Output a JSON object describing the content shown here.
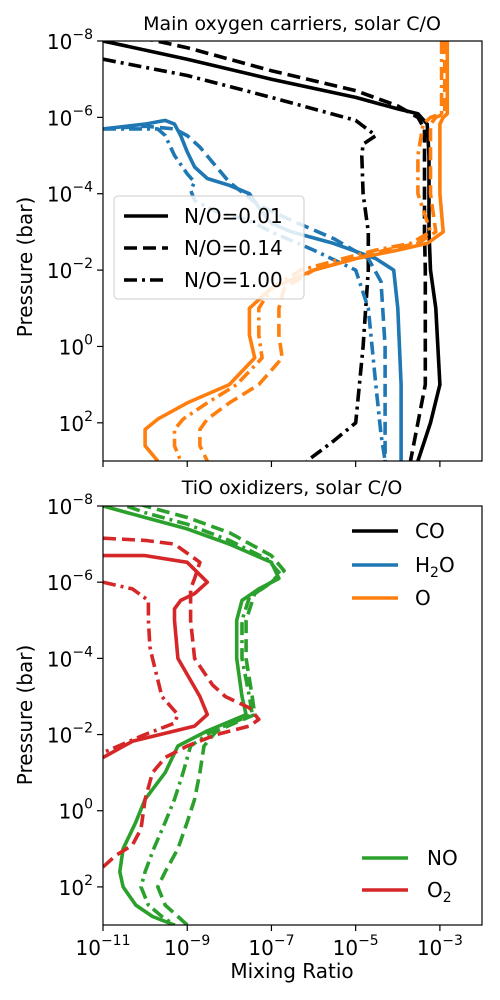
{
  "chart_data": [
    {
      "type": "line",
      "title": "Main oxygen carriers, solar C/O",
      "xlabel": "",
      "ylabel": "Pressure (bar)",
      "xscale": "log",
      "yscale": "log",
      "y_inverted": true,
      "xlim": [
        1e-11,
        0.01
      ],
      "ylim": [
        1e-08,
        1000
      ],
      "yticks": [
        {
          "base": "10",
          "exp": "−8",
          "value": 1e-08
        },
        {
          "base": "10",
          "exp": "−6",
          "value": 1e-06
        },
        {
          "base": "10",
          "exp": "−4",
          "value": 0.0001
        },
        {
          "base": "10",
          "exp": "−2",
          "value": 0.01
        },
        {
          "base": "10",
          "exp": "0",
          "value": 1
        },
        {
          "base": "10",
          "exp": "2",
          "value": 100
        }
      ],
      "legend": {
        "placement": "center-left",
        "entries": [
          {
            "label": "N/O=0.01",
            "dash": "solid"
          },
          {
            "label": "N/O=0.14",
            "dash": "dashed"
          },
          {
            "label": "N/O=1.00",
            "dash": "dashdot"
          }
        ]
      },
      "series": [
        {
          "species": "CO",
          "color": "#000000",
          "dash": "solid",
          "x": [
            1e-11,
            1e-09,
            1e-07,
            1e-05,
            0.0001,
            0.0003,
            0.0005,
            0.00055,
            0.00055,
            0.00055,
            0.0006,
            0.0008,
            0.001,
            0.0006,
            0.0003
          ],
          "y": [
            1e-08,
            3e-08,
            1e-07,
            3e-07,
            6e-07,
            8e-07,
            1.5e-06,
            1e-05,
            0.0001,
            0.001,
            0.01,
            0.1,
            10,
            100,
            1000
          ]
        },
        {
          "species": "CO",
          "color": "#000000",
          "dash": "dashed",
          "x": [
            1e-11,
            1e-09,
            1e-07,
            1e-05,
            0.0001,
            0.0003,
            0.00043,
            0.00043,
            0.00043,
            0.00043,
            0.00045,
            0.00045,
            0.0003,
            0.0002
          ],
          "y": [
            5e-09,
            1.5e-08,
            6e-08,
            2e-07,
            5e-07,
            1e-06,
            2e-06,
            1e-05,
            0.0001,
            0.001,
            0.01,
            10,
            100,
            1000
          ]
        },
        {
          "species": "CO",
          "color": "#000000",
          "dash": "dashdot",
          "x": [
            1e-11,
            1e-09,
            1e-07,
            1e-05,
            3e-05,
            1.5e-05,
            1.4e-05,
            1.5e-05,
            2e-05,
            2e-05,
            1.5e-05,
            1e-05,
            3e-06,
            7e-07
          ],
          "y": [
            3e-08,
            8e-08,
            3e-07,
            1.2e-06,
            3e-06,
            5e-06,
            1e-05,
            0.0001,
            0.001,
            0.01,
            1,
            100,
            300,
            1000
          ]
        },
        {
          "species": "H2O",
          "color": "#1f77b4",
          "dash": "solid",
          "x": [
            1e-11,
            1e-10,
            3e-10,
            5e-10,
            7e-10,
            1e-09,
            1.5e-09,
            3e-09,
            1e-08,
            3e-08,
            6e-08,
            1e-07,
            3e-07,
            3e-06,
            3e-05,
            8e-05,
            0.0001,
            0.00012,
            0.00012
          ],
          "y": [
            2e-06,
            1.5e-06,
            1.2e-06,
            1.5e-06,
            3e-06,
            8e-06,
            2e-05,
            4e-05,
            6e-05,
            0.0001,
            0.0003,
            0.0006,
            0.001,
            0.002,
            0.005,
            0.01,
            0.1,
            10,
            1000
          ]
        },
        {
          "species": "H2O",
          "color": "#1f77b4",
          "dash": "dashed",
          "x": [
            1e-11,
            1e-10,
            5e-10,
            1e-09,
            2e-09,
            4e-09,
            1e-08,
            5e-08,
            3e-07,
            3e-06,
            2e-05,
            4e-05,
            5e-05,
            5e-05
          ],
          "y": [
            2e-06,
            1.7e-06,
            2e-06,
            3e-06,
            6e-06,
            1.5e-05,
            5e-05,
            0.0002,
            0.0005,
            0.0015,
            0.005,
            0.02,
            1,
            1000
          ]
        },
        {
          "species": "H2O",
          "color": "#1f77b4",
          "dash": "dashdot",
          "x": [
            1e-11,
            1e-10,
            2e-10,
            3e-10,
            5e-10,
            1e-09,
            1.5e-09,
            1.2e-09,
            1.3e-09,
            1.5e-09,
            5e-09,
            3e-08,
            1e-07,
            1e-06,
            1e-05,
            2e-05,
            3e-05,
            4e-05,
            5e-05
          ],
          "y": [
            2e-06,
            2e-06,
            2e-06,
            3e-06,
            1e-05,
            3e-05,
            5e-05,
            8e-05,
            0.0001,
            0.00015,
            0.0003,
            0.0005,
            0.001,
            0.003,
            0.01,
            0.1,
            10,
            200,
            1000
          ]
        },
        {
          "species": "O",
          "color": "#ff7f0e",
          "dash": "solid",
          "x": [
            0.0015,
            0.0015,
            0.0015,
            0.0015,
            0.0012,
            0.001,
            0.001,
            0.001,
            0.0012,
            0.0005,
            0.0001,
            1e-05,
            1e-06,
            1e-07,
            3e-08,
            3e-08,
            4e-08,
            1e-08,
            1e-09,
            2e-10,
            1e-10,
            1e-10,
            2e-10
          ],
          "y": [
            1e-08,
            1e-07,
            6e-07,
            8e-07,
            1e-06,
            1.5e-06,
            1e-05,
            0.0001,
            0.001,
            0.002,
            0.003,
            0.005,
            0.01,
            0.03,
            0.1,
            0.5,
            2,
            10,
            30,
            80,
            150,
            400,
            1000
          ]
        },
        {
          "species": "O",
          "color": "#ff7f0e",
          "dash": "dashed",
          "x": [
            0.0013,
            0.0013,
            0.0013,
            0.0013,
            0.0008,
            0.0006,
            0.0006,
            0.0006,
            0.0008,
            0.0003,
            5e-05,
            1e-05,
            1e-06,
            2e-07,
            1.5e-07,
            1.5e-07,
            1.8e-07,
            5e-08,
            1e-08,
            3e-09,
            2e-09,
            2e-09,
            3e-09
          ],
          "y": [
            1e-08,
            1e-07,
            6e-07,
            8e-07,
            1e-06,
            1.5e-06,
            1e-05,
            0.0001,
            0.001,
            0.002,
            0.003,
            0.005,
            0.01,
            0.03,
            0.1,
            0.5,
            2,
            10,
            30,
            80,
            150,
            400,
            1000
          ]
        },
        {
          "species": "O",
          "color": "#ff7f0e",
          "dash": "dashdot",
          "x": [
            0.0011,
            0.0011,
            0.0011,
            0.0011,
            0.0006,
            0.0004,
            0.0003,
            0.0003,
            0.0006,
            0.0002,
            3e-05,
            5e-06,
            5e-07,
            1e-07,
            5e-08,
            5e-08,
            6e-08,
            1.5e-08,
            3e-09,
            8e-10,
            5e-10,
            5e-10,
            7e-10
          ],
          "y": [
            1e-08,
            1e-07,
            6e-07,
            8e-07,
            1e-06,
            1.5e-06,
            1e-05,
            0.0001,
            0.001,
            0.002,
            0.003,
            0.005,
            0.01,
            0.03,
            0.1,
            0.5,
            2,
            10,
            30,
            80,
            150,
            400,
            1000
          ]
        }
      ]
    },
    {
      "type": "line",
      "title": "TiO oxidizers, solar C/O",
      "xlabel": "Mixing Ratio",
      "ylabel": "Pressure (bar)",
      "xscale": "log",
      "yscale": "log",
      "y_inverted": true,
      "xlim": [
        1e-11,
        0.01
      ],
      "ylim": [
        1e-08,
        1000
      ],
      "xticks": [
        {
          "base": "10",
          "exp": "−11",
          "value": 1e-11
        },
        {
          "base": "10",
          "exp": "−9",
          "value": 1e-09
        },
        {
          "base": "10",
          "exp": "−7",
          "value": 1e-07
        },
        {
          "base": "10",
          "exp": "−5",
          "value": 1e-05
        },
        {
          "base": "10",
          "exp": "−3",
          "value": 0.001
        }
      ],
      "yticks": [
        {
          "base": "10",
          "exp": "−8",
          "value": 1e-08
        },
        {
          "base": "10",
          "exp": "−6",
          "value": 1e-06
        },
        {
          "base": "10",
          "exp": "−4",
          "value": 0.0001
        },
        {
          "base": "10",
          "exp": "−2",
          "value": 0.01
        },
        {
          "base": "10",
          "exp": "0",
          "value": 1
        },
        {
          "base": "10",
          "exp": "2",
          "value": 100
        }
      ],
      "legend_top": {
        "placement": "top-right",
        "entries": [
          {
            "label": "CO",
            "sub": "",
            "color": "#000000"
          },
          {
            "label": "H",
            "sub": "2",
            "tail": "O",
            "color": "#1f77b4"
          },
          {
            "label": "O",
            "sub": "",
            "color": "#ff7f0e"
          }
        ]
      },
      "legend_bottom": {
        "placement": "bottom-right",
        "entries": [
          {
            "label": "NO",
            "sub": "",
            "color": "#2ca02c"
          },
          {
            "label": "O",
            "sub": "2",
            "color": "#d62728"
          }
        ]
      },
      "series": [
        {
          "species": "NO",
          "color": "#2ca02c",
          "dash": "solid",
          "x": [
            1e-11,
            1e-10,
            1e-09,
            1e-08,
            1e-07,
            1.5e-07,
            5e-08,
            2e-08,
            1.5e-08,
            1.5e-08,
            2e-08,
            2.5e-08,
            3e-09,
            6e-10,
            3e-10,
            1e-10,
            6e-11,
            3e-11,
            2.5e-11,
            3e-11,
            6e-11,
            1.5e-10,
            5e-10
          ],
          "y": [
            1e-08,
            2e-08,
            4e-08,
            1e-07,
            3e-07,
            8e-07,
            1.5e-06,
            3e-06,
            1e-05,
            0.0001,
            0.001,
            0.003,
            0.008,
            0.02,
            0.1,
            0.5,
            2,
            10,
            40,
            100,
            300,
            600,
            1000
          ]
        },
        {
          "species": "NO",
          "color": "#2ca02c",
          "dash": "dashed",
          "x": [
            1e-11,
            1e-10,
            1e-09,
            1e-08,
            1e-07,
            2e-07,
            1e-07,
            4e-08,
            2.5e-08,
            2.5e-08,
            3.5e-08,
            4e-08,
            5e-09,
            2.5e-09,
            2e-09,
            1.5e-09,
            1e-09,
            6e-10,
            3e-10,
            2e-10,
            3e-10,
            6e-10,
            1e-09
          ],
          "y": [
            4e-09,
            1e-08,
            2e-08,
            5e-08,
            2e-07,
            5e-07,
            1e-06,
            2e-06,
            1e-05,
            0.0001,
            0.001,
            0.003,
            0.008,
            0.02,
            0.1,
            0.5,
            2,
            10,
            40,
            100,
            300,
            600,
            1000
          ]
        },
        {
          "species": "NO",
          "color": "#2ca02c",
          "dash": "dashdot",
          "x": [
            1e-11,
            1e-10,
            1e-09,
            1e-08,
            8e-08,
            1.6e-07,
            8e-08,
            3e-08,
            2e-08,
            2e-08,
            3e-08,
            3.5e-08,
            4e-09,
            1.2e-09,
            8e-10,
            5e-10,
            3e-10,
            1.6e-10,
            1e-10,
            8e-11,
            1.2e-10,
            2.5e-10,
            5e-10
          ],
          "y": [
            6e-09,
            1.5e-08,
            3e-08,
            8e-08,
            2.5e-07,
            6e-07,
            1.2e-06,
            2.5e-06,
            1e-05,
            0.0001,
            0.001,
            0.003,
            0.008,
            0.02,
            0.1,
            0.5,
            2,
            10,
            40,
            100,
            300,
            600,
            1000
          ]
        },
        {
          "species": "O2",
          "color": "#d62728",
          "dash": "solid",
          "x": [
            1e-11,
            1e-10,
            1e-09,
            3e-09,
            1.5e-09,
            7e-10,
            5e-10,
            5e-10,
            6e-10,
            2e-09,
            3e-09,
            1.5e-09,
            5e-11,
            1e-11
          ],
          "y": [
            2e-07,
            2e-07,
            3e-07,
            1e-06,
            2e-06,
            3e-06,
            5e-06,
            1e-05,
            0.0001,
            0.001,
            0.003,
            0.006,
            0.015,
            0.04
          ]
        },
        {
          "species": "O2",
          "color": "#d62728",
          "dash": "dashed",
          "x": [
            1e-11,
            1e-10,
            5e-10,
            2e-09,
            1.5e-09,
            1.2e-09,
            1.2e-09,
            1.5e-09,
            4e-09,
            8e-09,
            3e-08,
            5e-08,
            3e-08,
            5e-09,
            1e-09,
            3e-10,
            1.5e-10,
            1e-10,
            8e-11,
            5e-11,
            2e-11,
            1e-11
          ],
          "y": [
            7e-08,
            8e-08,
            1e-07,
            3e-07,
            8e-07,
            1.5e-06,
            1e-05,
            0.0001,
            0.0005,
            0.001,
            0.002,
            0.004,
            0.006,
            0.01,
            0.02,
            0.04,
            0.1,
            0.5,
            3,
            8,
            15,
            30
          ]
        },
        {
          "species": "O2",
          "color": "#d62728",
          "dash": "dashdot",
          "x": [
            1e-11,
            5e-11,
            1.2e-10,
            1.2e-10,
            1.3e-10,
            1.5e-10,
            2.5e-10,
            6e-10,
            5e-10,
            1e-10,
            1e-11
          ],
          "y": [
            1e-06,
            1.5e-06,
            3e-06,
            1e-05,
            5e-05,
            0.0001,
            0.001,
            0.003,
            0.005,
            0.01,
            0.03
          ]
        }
      ]
    }
  ]
}
